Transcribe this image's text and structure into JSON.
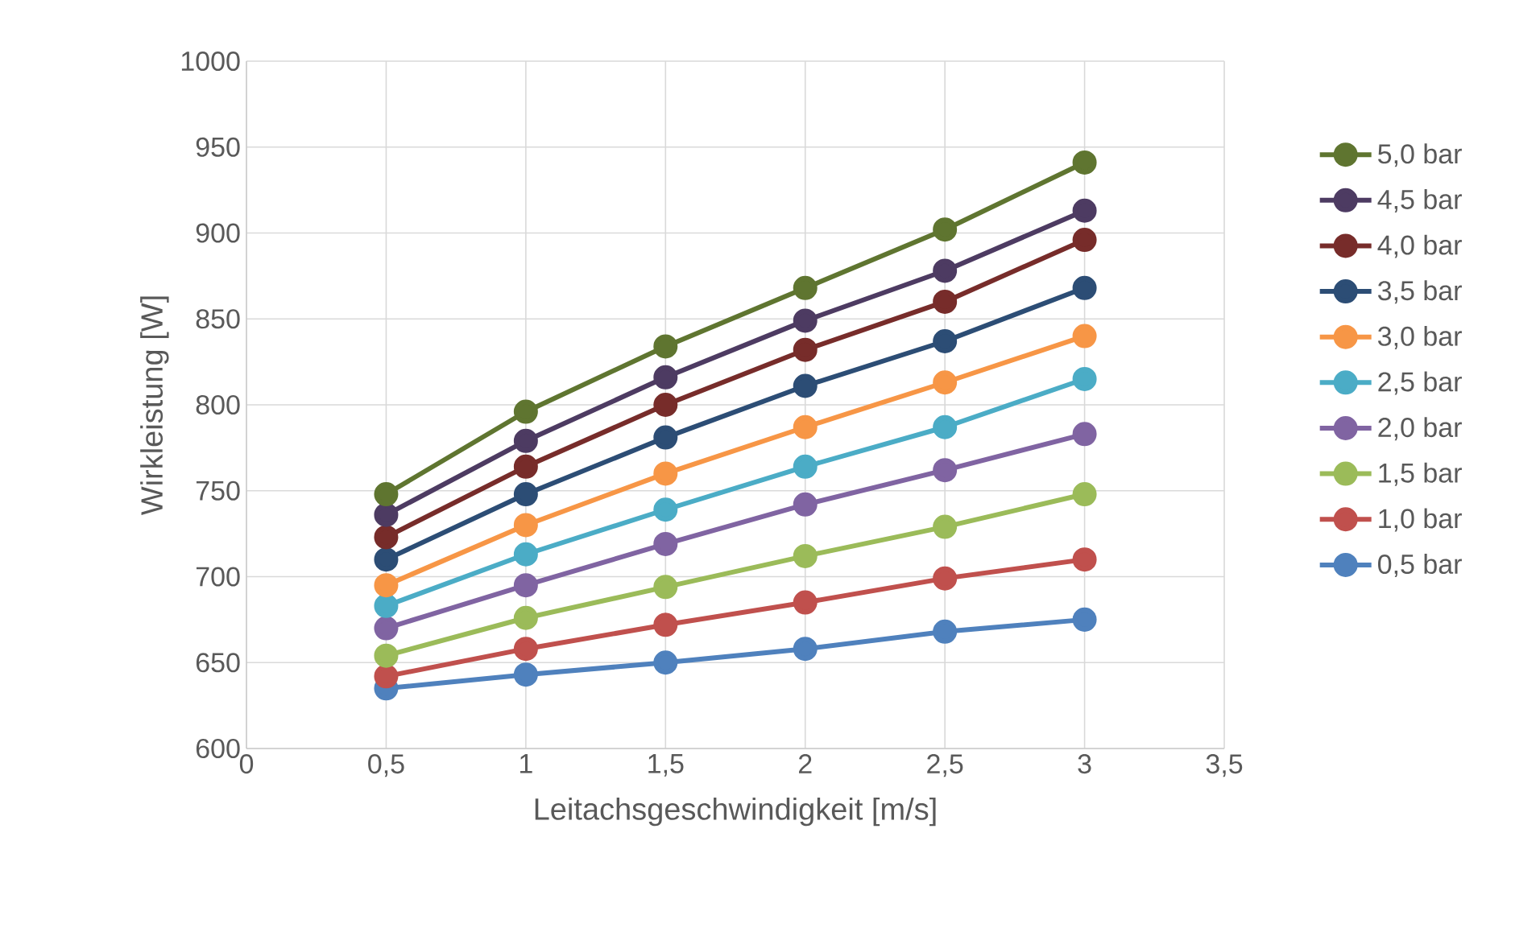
{
  "chart_data": {
    "type": "line",
    "xlabel": "Leitachsgeschwindigkeit [m/s]",
    "ylabel": "Wirkleistung [W]",
    "x": [
      0.5,
      1,
      1.5,
      2,
      2.5,
      3
    ],
    "xlim": [
      0,
      3.5
    ],
    "xticks": [
      0,
      {
        "value": 0.5,
        "label": "0,5"
      },
      1,
      {
        "value": 1.5,
        "label": "1,5"
      },
      2,
      {
        "value": 2.5,
        "label": "2,5"
      },
      3,
      {
        "value": 3.5,
        "label": "3,5"
      }
    ],
    "ylim": [
      600,
      1000
    ],
    "yticks": [
      600,
      650,
      700,
      750,
      800,
      850,
      900,
      950,
      1000
    ],
    "grid": true,
    "legend": "right",
    "marker": "circle",
    "line_style": "solid",
    "series": [
      {
        "name": "5,0 bar",
        "color": "#5f7530",
        "values": [
          748,
          796,
          834,
          868,
          902,
          941
        ]
      },
      {
        "name": "4,5 bar",
        "color": "#4d3b62",
        "values": [
          736,
          779,
          816,
          849,
          878,
          913
        ]
      },
      {
        "name": "4,0 bar",
        "color": "#772c2a",
        "values": [
          723,
          764,
          800,
          832,
          860,
          896
        ]
      },
      {
        "name": "3,5 bar",
        "color": "#2c4d75",
        "values": [
          710,
          748,
          781,
          811,
          837,
          868
        ]
      },
      {
        "name": "3,0 bar",
        "color": "#f79646",
        "values": [
          695,
          730,
          760,
          787,
          813,
          840
        ]
      },
      {
        "name": "2,5 bar",
        "color": "#4bacc6",
        "values": [
          683,
          713,
          739,
          764,
          787,
          815
        ]
      },
      {
        "name": "2,0 bar",
        "color": "#8064a2",
        "values": [
          670,
          695,
          719,
          742,
          762,
          783
        ]
      },
      {
        "name": "1,5 bar",
        "color": "#9bbb59",
        "values": [
          654,
          676,
          694,
          712,
          729,
          748
        ]
      },
      {
        "name": "1,0 bar",
        "color": "#c0504d",
        "values": [
          642,
          658,
          672,
          685,
          699,
          710
        ]
      },
      {
        "name": "0,5 bar",
        "color": "#4f81bd",
        "values": [
          635,
          643,
          650,
          658,
          668,
          675
        ]
      }
    ]
  }
}
